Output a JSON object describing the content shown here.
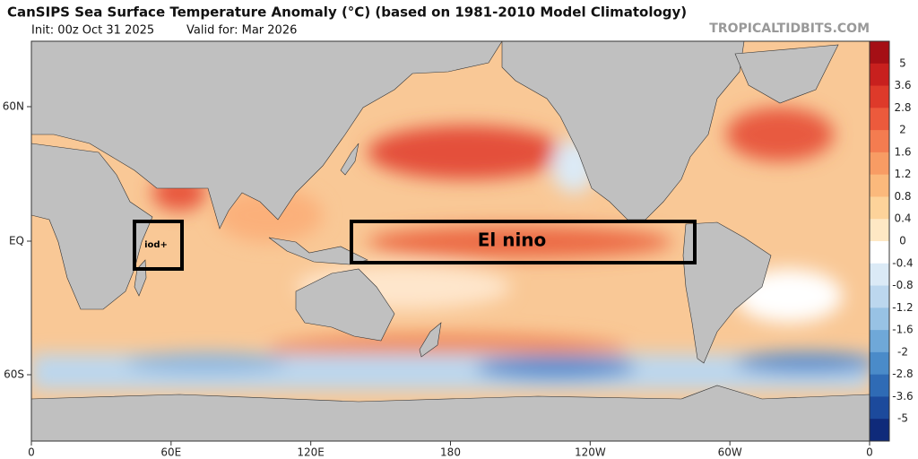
{
  "header": {
    "title": "CanSIPS Sea Surface Temperature Anomaly (°C) (based on 1981-2010 Model Climatology)",
    "init": "Init: 00z Oct 31 2025",
    "valid": "Valid for: Mar 2026",
    "source": "TROPICALTIDBITS.COM"
  },
  "map": {
    "lat_labels": [
      "60N",
      "EQ",
      "60S"
    ],
    "lon_labels": [
      "0",
      "60E",
      "120E",
      "180",
      "120W",
      "60W",
      "0"
    ],
    "annotations": [
      "El nino",
      "iod+"
    ]
  },
  "colorbar": {
    "ticks": [
      5,
      3.6,
      2.8,
      2,
      1.6,
      1.2,
      0.8,
      0.4,
      0,
      -0.4,
      -0.8,
      -1.2,
      -1.6,
      -2,
      -2.8,
      -3.6,
      -5
    ],
    "colors": [
      "#a50f15",
      "#c8201e",
      "#de3a2a",
      "#ec5a3c",
      "#f47c50",
      "#f89c64",
      "#fbb97c",
      "#fdd39a",
      "#fee8c4",
      "#ffffff",
      "#dbeaf6",
      "#bcd7ee",
      "#98c2e4",
      "#6fa8d8",
      "#4a8bc9",
      "#2f6bb5",
      "#1c4a9c",
      "#0f2a7a"
    ]
  }
}
